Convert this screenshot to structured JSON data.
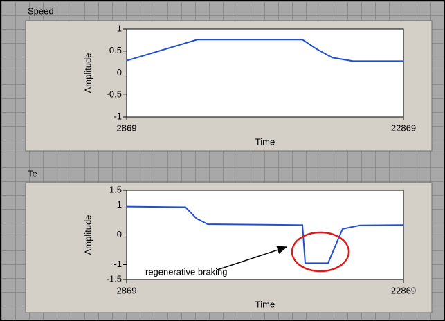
{
  "chart_data": [
    {
      "type": "line",
      "title": "Speed",
      "xlabel": "Time",
      "ylabel": "Amplitude",
      "x": [
        2869,
        7969,
        15569,
        16569,
        17719,
        19219,
        22869
      ],
      "values": [
        0.28,
        0.76,
        0.76,
        0.55,
        0.35,
        0.27,
        0.27
      ],
      "color": "#1f4fd6",
      "xlim": [
        2869,
        22869
      ],
      "xticks": [
        2869,
        22869
      ],
      "ylim": [
        -1,
        1
      ],
      "yticks": [
        -1,
        -0.5,
        0,
        0.5,
        1
      ]
    },
    {
      "type": "line",
      "title": "Te",
      "xlabel": "Time",
      "ylabel": "Amplitude",
      "x": [
        2869,
        7119,
        7919,
        8719,
        15569,
        15769,
        17419,
        17919,
        18469,
        19719,
        22869
      ],
      "values": [
        0.95,
        0.93,
        0.55,
        0.36,
        0.33,
        -0.95,
        -0.95,
        -0.4,
        0.2,
        0.32,
        0.33
      ],
      "color": "#1f4fd6",
      "xlim": [
        2869,
        22869
      ],
      "xticks": [
        2869,
        22869
      ],
      "ylim": [
        -1.5,
        1.5
      ],
      "yticks": [
        -1.5,
        -1,
        0,
        1,
        1.5
      ],
      "annotation": "regenerative braking"
    }
  ]
}
